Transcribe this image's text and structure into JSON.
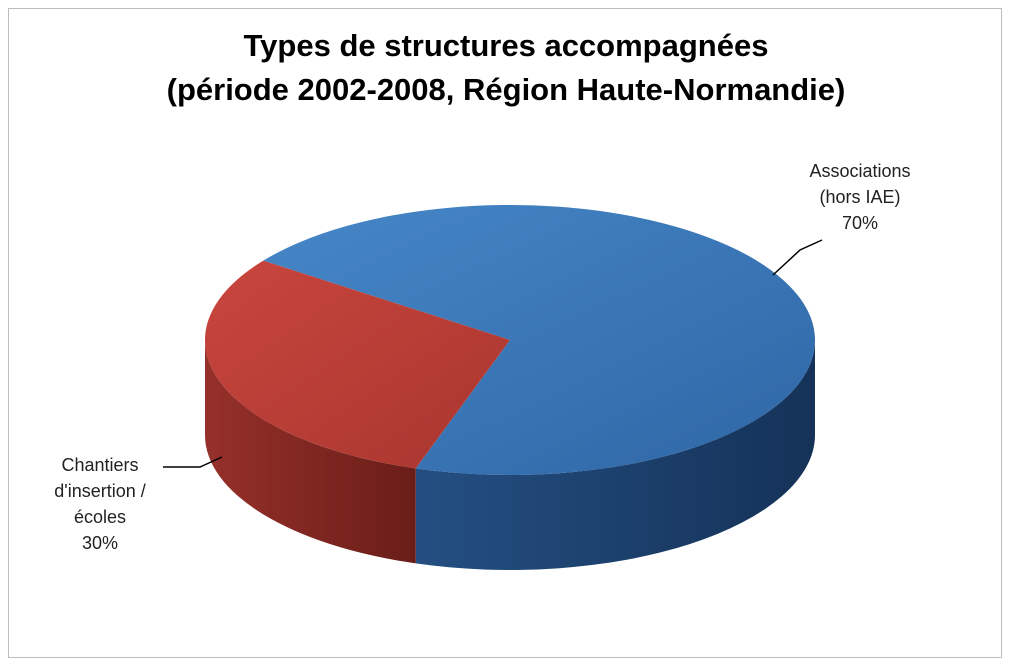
{
  "chart_data": {
    "type": "pie3d",
    "title": [
      "Types de structures accompagnées",
      "(période 2002-2008, Région Haute-Normandie)"
    ],
    "categories": [
      "Associations (hors IAE)",
      "Chantiers d'insertion / écoles"
    ],
    "values": [
      70,
      30
    ],
    "value_labels": [
      "70%",
      "30%"
    ],
    "colors": [
      "#3b78b8",
      "#b93c35"
    ]
  }
}
